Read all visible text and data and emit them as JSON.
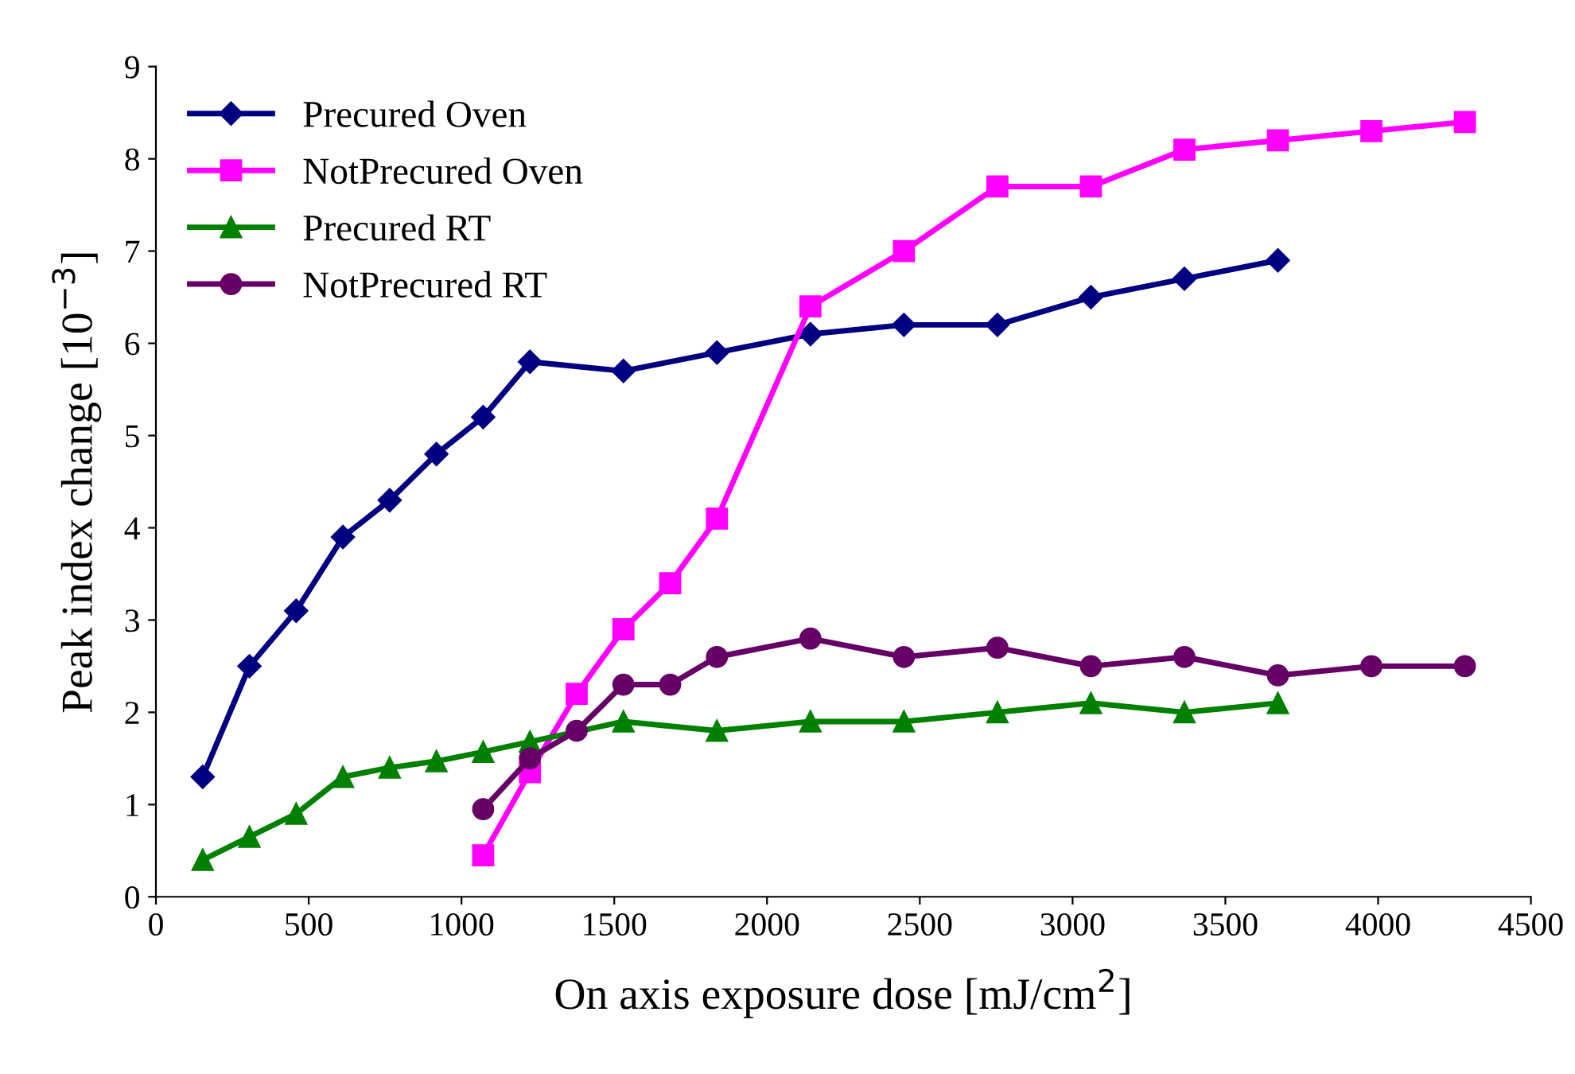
{
  "chart_data": {
    "type": "line",
    "xlabel": "On axis exposure dose [mJ/cm$^{2}$]",
    "ylabel": "Peak index change [10$^{−3}$]",
    "xlim": [
      0,
      4500
    ],
    "xticks": [
      0,
      500,
      1000,
      1500,
      2000,
      2500,
      3000,
      3500,
      4000,
      4500
    ],
    "ylim": [
      0,
      9
    ],
    "yticks": [
      0,
      1,
      2,
      3,
      4,
      5,
      6,
      7,
      8,
      9
    ],
    "grid": false,
    "legend": "top left",
    "series": [
      {
        "name": "Precured Oven",
        "color": "#000080",
        "marker": "diamond",
        "x": [
          153,
          306,
          459,
          612,
          765,
          918,
          1071,
          1224,
          1530,
          1836,
          2142,
          2448,
          2754,
          3060,
          3366,
          3672
        ],
        "values": [
          1.3,
          2.5,
          3.1,
          3.9,
          4.3,
          4.8,
          5.2,
          5.8,
          5.7,
          5.9,
          6.1,
          6.2,
          6.2,
          6.5,
          6.7,
          6.9
        ]
      },
      {
        "name": "NotPrecured Oven",
        "color": "#ff00ff",
        "marker": "square",
        "x": [
          1071,
          1224,
          1377,
          1530,
          1683,
          1836,
          2142,
          2448,
          2754,
          3060,
          3366,
          3672,
          3978,
          4284
        ],
        "values": [
          0.45,
          1.35,
          2.2,
          2.9,
          3.4,
          4.1,
          6.4,
          7.0,
          7.7,
          7.7,
          8.1,
          8.2,
          8.3,
          8.4
        ]
      },
      {
        "name": "Precured RT",
        "color": "#008000",
        "marker": "triangle",
        "x": [
          153,
          306,
          459,
          612,
          765,
          918,
          1071,
          1224,
          1530,
          1836,
          2142,
          2448,
          2754,
          3060,
          3366,
          3672
        ],
        "values": [
          0.4,
          0.65,
          0.9,
          1.3,
          1.4,
          1.47,
          1.57,
          1.68,
          1.9,
          1.8,
          1.9,
          1.9,
          2.0,
          2.1,
          2.0,
          2.1
        ]
      },
      {
        "name": "NotPrecured RT",
        "color": "#660066",
        "marker": "circle",
        "x": [
          1071,
          1224,
          1377,
          1530,
          1683,
          1836,
          2142,
          2448,
          2754,
          3060,
          3366,
          3672,
          3978,
          4284
        ],
        "values": [
          0.95,
          1.5,
          1.8,
          2.3,
          2.3,
          2.6,
          2.8,
          2.6,
          2.7,
          2.5,
          2.6,
          2.4,
          2.5,
          2.5
        ]
      }
    ]
  }
}
